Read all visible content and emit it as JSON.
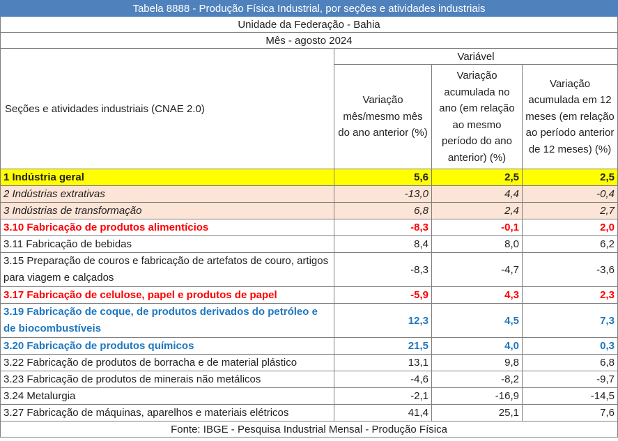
{
  "title": "Tabela 8888 - Produção Física Industrial, por seções e atividades industriais",
  "uf": "Unidade da Federação - Bahia",
  "mes": "Mês - agosto 2024",
  "header": {
    "variavel": "Variável",
    "secoes": "Seções e atividades industriais (CNAE 2.0)",
    "col1": "Variação mês/mesmo mês do ano anterior (%)",
    "col2": "Variação acumulada no ano (em relação ao mesmo período do ano anterior) (%)",
    "col3": "Variação acumulada em 12 meses (em relação ao período anterior de 12 meses) (%)"
  },
  "rows": [
    {
      "label": "1 Indústria geral",
      "v1": "5,6",
      "v2": "2,5",
      "v3": "2,5"
    },
    {
      "label": "2 Indústrias extrativas",
      "v1": "-13,0",
      "v2": "4,4",
      "v3": "-0,4"
    },
    {
      "label": "3 Indústrias de transformação",
      "v1": "6,8",
      "v2": "2,4",
      "v3": "2,7"
    },
    {
      "label": "3.10 Fabricação de produtos alimentícios",
      "v1": "-8,3",
      "v2": "-0,1",
      "v3": "2,0"
    },
    {
      "label": "3.11 Fabricação de bebidas",
      "v1": "8,4",
      "v2": "8,0",
      "v3": "6,2"
    },
    {
      "label": "3.15 Preparação de couros e fabricação de artefatos de couro, artigos para viagem e calçados",
      "v1": "-8,3",
      "v2": "-4,7",
      "v3": "-3,6"
    },
    {
      "label": "3.17 Fabricação de celulose, papel e produtos de papel",
      "v1": "-5,9",
      "v2": "4,3",
      "v3": "2,3"
    },
    {
      "label": "3.19 Fabricação de coque, de produtos derivados do petróleo e de biocombustíveis",
      "v1": "12,3",
      "v2": "4,5",
      "v3": "7,3"
    },
    {
      "label": "3.20 Fabricação de produtos químicos",
      "v1": "21,5",
      "v2": "4,0",
      "v3": "0,3"
    },
    {
      "label": "3.22 Fabricação de produtos de borracha e de material plástico",
      "v1": "13,1",
      "v2": "9,8",
      "v3": "6,8"
    },
    {
      "label": "3.23 Fabricação de produtos de minerais não metálicos",
      "v1": "-4,6",
      "v2": "-8,2",
      "v3": "-9,7"
    },
    {
      "label": "3.24 Metalurgia",
      "v1": "-2,1",
      "v2": "-16,9",
      "v3": "-14,5"
    },
    {
      "label": "3.27 Fabricação de máquinas, aparelhos e materiais elétricos",
      "v1": "41,4",
      "v2": "25,1",
      "v3": "7,6"
    }
  ],
  "fonte": "Fonte: IBGE - Pesquisa Industrial Mensal - Produção Física",
  "colors": {
    "title_bg": "#4f81bd",
    "geral_bg": "#ffff00",
    "sec_bg": "#fce4d6",
    "red": "#ff0000",
    "blue": "#1f77c0"
  }
}
